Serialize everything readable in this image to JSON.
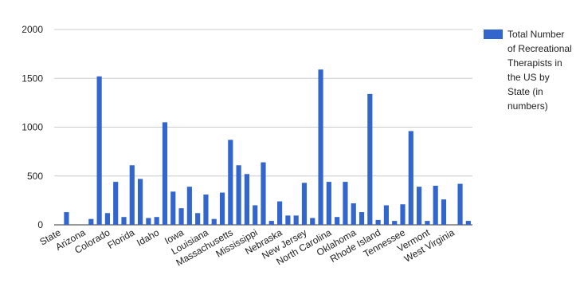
{
  "chart_data": {
    "type": "bar",
    "categories": [
      "State",
      null,
      null,
      "Arizona",
      null,
      null,
      "Colorado",
      null,
      null,
      "Florida",
      null,
      null,
      "Idaho",
      null,
      null,
      "Iowa",
      null,
      null,
      "Louisiana",
      null,
      null,
      "Massachusetts",
      null,
      null,
      "Mississippi",
      null,
      null,
      "Nebraska",
      null,
      null,
      "New Jersey",
      null,
      null,
      "North Carolina",
      null,
      null,
      "Oklahoma",
      null,
      null,
      "Rhode Island",
      null,
      null,
      "Tennessee",
      null,
      null,
      "Vermont",
      null,
      null,
      "West Virginia",
      null,
      null
    ],
    "series": [
      {
        "name": "Total Number of Recreational Therapists in the US by State (in numbers)",
        "color": "#3366cc",
        "values": [
          null,
          130,
          0,
          0,
          60,
          1520,
          120,
          440,
          80,
          610,
          470,
          70,
          80,
          1050,
          340,
          170,
          390,
          120,
          310,
          60,
          330,
          870,
          610,
          520,
          200,
          640,
          40,
          240,
          95,
          95,
          430,
          70,
          1590,
          440,
          80,
          440,
          220,
          130,
          1340,
          50,
          200,
          40,
          210,
          960,
          390,
          40,
          400,
          260,
          0,
          420,
          40
        ]
      }
    ],
    "ylim": [
      0,
      2000
    ],
    "yticks": [
      0,
      500,
      1000,
      1500,
      2000
    ],
    "grid": true,
    "legend": "right"
  }
}
